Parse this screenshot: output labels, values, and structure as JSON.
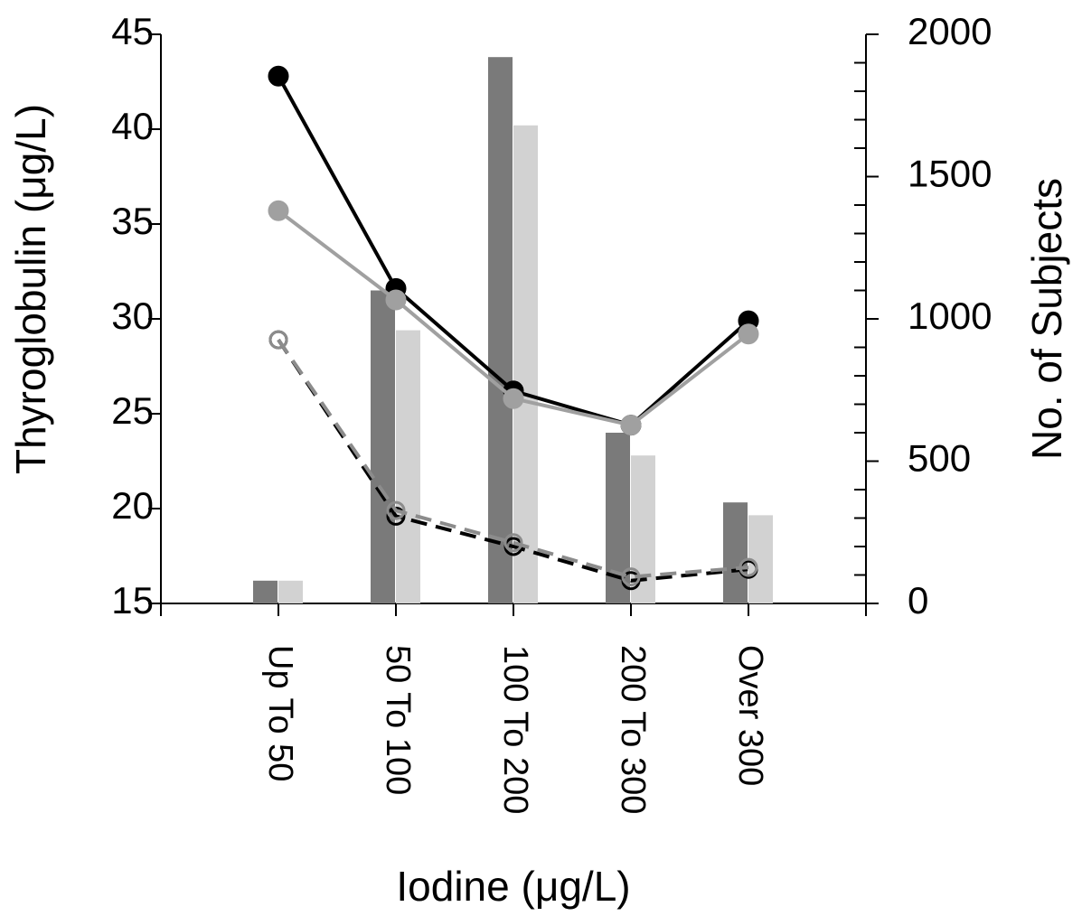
{
  "chart_data": {
    "type": "bar-line",
    "ylabel": "Thyroglobulin (μg/L)",
    "y2label": "No. of Subjects",
    "xlabel": "Iodine (μg/L)",
    "categories": [
      "Up To 50",
      "50 To 100",
      "100 To 200",
      "200 To 300",
      "Over 300"
    ],
    "ylim": [
      15,
      45
    ],
    "yticks": [
      15,
      20,
      25,
      30,
      35,
      40,
      45
    ],
    "y2lim": [
      0,
      2000
    ],
    "y2ticks": [
      0,
      500,
      1000,
      1500,
      2000
    ],
    "series": [
      {
        "type": "bar",
        "axis": "y2",
        "color": "#7a7a7a",
        "values": [
          80,
          1100,
          1920,
          600,
          355
        ]
      },
      {
        "type": "bar",
        "axis": "y2",
        "color": "#d2d2d2",
        "values": [
          80,
          960,
          1680,
          520,
          310
        ]
      },
      {
        "type": "line",
        "color": "#000000",
        "dashed": true,
        "marker": "hollow",
        "values": [
          28.9,
          19.6,
          18.0,
          16.2,
          16.8
        ]
      },
      {
        "type": "line",
        "color": "#8c8c8c",
        "dashed": true,
        "marker": "hollow",
        "values": [
          28.9,
          19.9,
          18.2,
          16.4,
          16.9
        ]
      },
      {
        "type": "line",
        "color": "#000000",
        "dashed": false,
        "marker": "filled",
        "values": [
          42.8,
          31.6,
          26.2,
          24.4,
          29.9
        ]
      },
      {
        "type": "line",
        "color": "#a0a0a0",
        "dashed": false,
        "marker": "filled",
        "values": [
          35.7,
          31.0,
          25.8,
          24.4,
          29.2
        ]
      }
    ]
  }
}
